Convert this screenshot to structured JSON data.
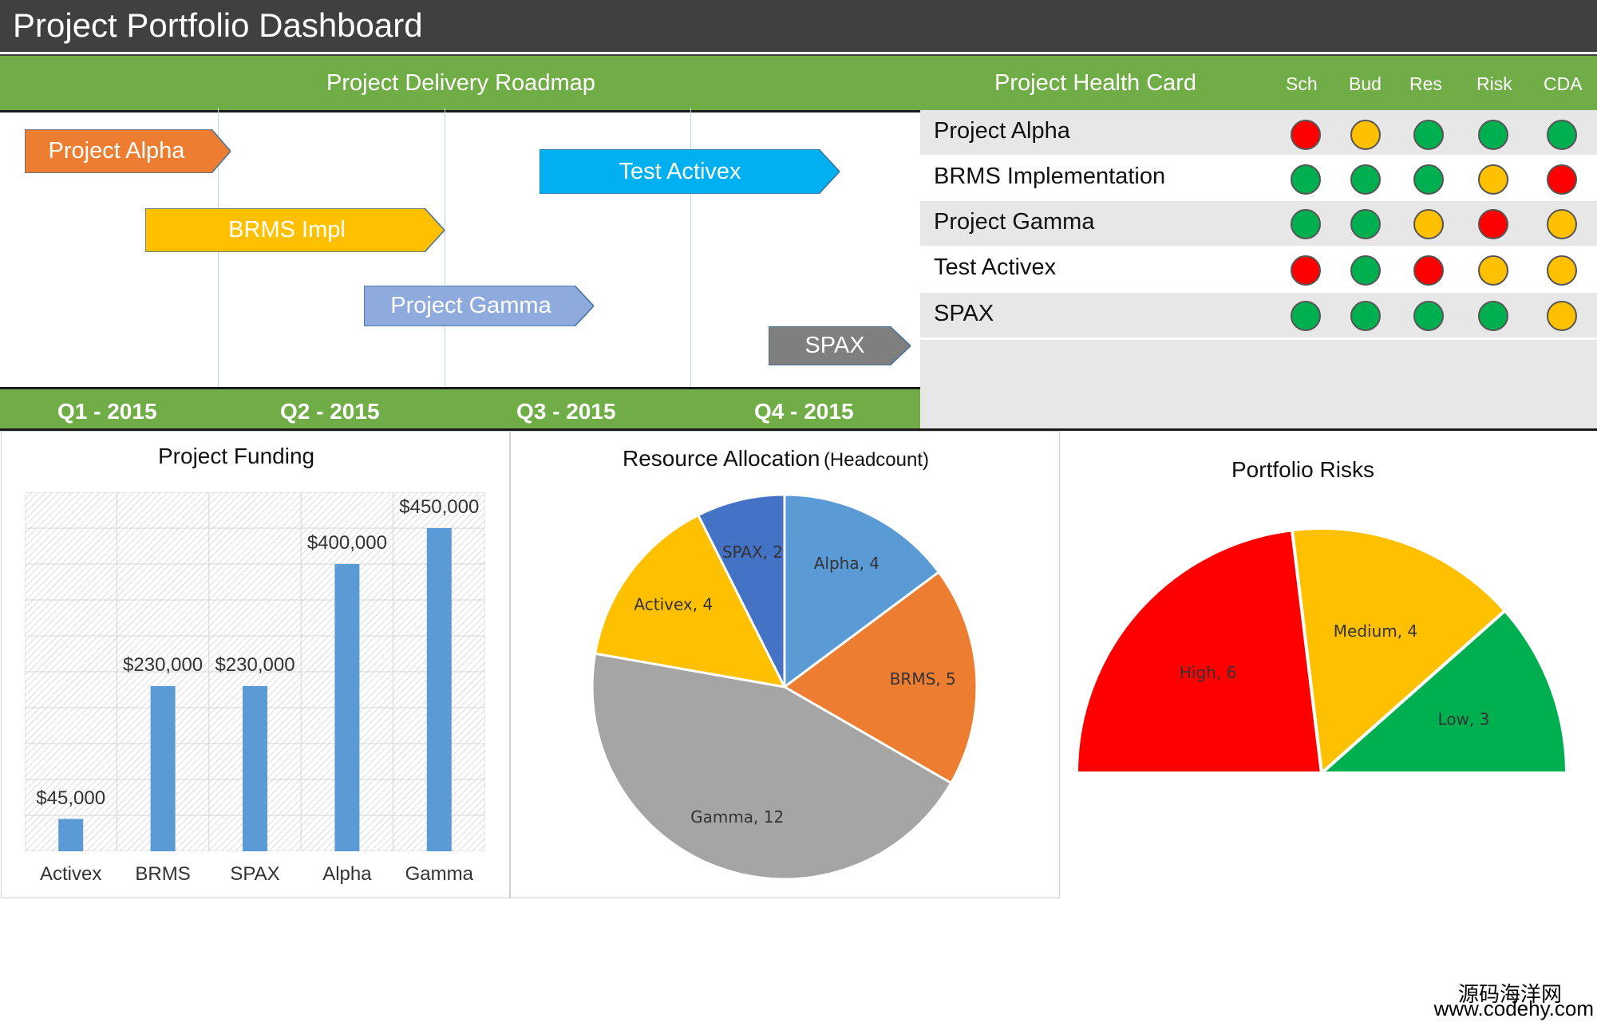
{
  "header": {
    "title": "Project Portfolio Dashboard"
  },
  "roadmap": {
    "title": "Project Delivery Roadmap",
    "quarters": [
      "Q1 - 2015",
      "Q2 - 2015",
      "Q3 - 2015",
      "Q4 - 2015"
    ],
    "projects": [
      {
        "label": "Project Alpha",
        "color": "#ed7d31"
      },
      {
        "label": "Test Activex",
        "color": "#00b0f0"
      },
      {
        "label": "BRMS Impl",
        "color": "#ffc000"
      },
      {
        "label": "Project Gamma",
        "color": "#8faadc"
      },
      {
        "label": "SPAX",
        "color": "#7f7f7f"
      }
    ]
  },
  "health": {
    "title": "Project Health Card",
    "columns": [
      "Sch",
      "Bud",
      "Res",
      "Risk",
      "CDA"
    ],
    "status_colors": {
      "green": "#00b050",
      "amber": "#ffc000",
      "red": "#ff0000"
    },
    "rows": [
      {
        "name": "Project Alpha",
        "status": [
          "red",
          "amber",
          "green",
          "green",
          "green"
        ]
      },
      {
        "name": "BRMS Implementation",
        "status": [
          "green",
          "green",
          "green",
          "amber",
          "red"
        ]
      },
      {
        "name": "Project Gamma",
        "status": [
          "green",
          "green",
          "amber",
          "red",
          "amber"
        ]
      },
      {
        "name": "Test Activex",
        "status": [
          "red",
          "green",
          "red",
          "amber",
          "amber"
        ]
      },
      {
        "name": "SPAX",
        "status": [
          "green",
          "green",
          "green",
          "green",
          "amber"
        ]
      }
    ]
  },
  "chart_data": [
    {
      "type": "bar",
      "title": "Project Funding",
      "categories": [
        "Activex",
        "BRMS",
        "SPAX",
        "Alpha",
        "Gamma"
      ],
      "values": [
        45000,
        230000,
        230000,
        400000,
        450000
      ],
      "value_labels": [
        "$45,000",
        "$230,000",
        "$230,000",
        "$400,000",
        "$450,000"
      ],
      "ylim": [
        0,
        450000
      ],
      "color": "#5b9bd5",
      "grid": true
    },
    {
      "type": "pie",
      "title": "Resource Allocation",
      "title_suffix": "(Headcount)",
      "slices": [
        {
          "label": "Alpha, 4",
          "value": 4,
          "color": "#5b9bd5"
        },
        {
          "label": "BRMS, 5",
          "value": 5,
          "color": "#ed7d31"
        },
        {
          "label": "Gamma, 12",
          "value": 12,
          "color": "#a5a5a5"
        },
        {
          "label": "Activex, 4",
          "value": 4,
          "color": "#ffc000"
        },
        {
          "label": "SPAX, 2",
          "value": 2,
          "color": "#4472c4"
        }
      ]
    },
    {
      "type": "pie",
      "title": "Portfolio Risks",
      "subtype": "half-donut",
      "slices": [
        {
          "label": "High, 6",
          "value": 6,
          "color": "#ff0000"
        },
        {
          "label": "Medium, 4",
          "value": 4,
          "color": "#ffc000"
        },
        {
          "label": "Low, 3",
          "value": 3,
          "color": "#00b050"
        }
      ]
    }
  ],
  "watermark": {
    "line1": "源码海洋网",
    "line2": "www.codehy.com"
  }
}
